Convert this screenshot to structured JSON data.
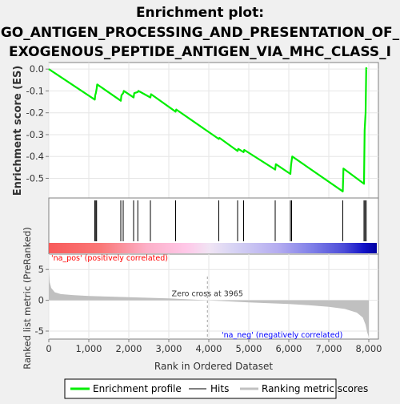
{
  "title_lines": [
    "Enrichment plot:",
    "GO_ANTIGEN_PROCESSING_AND_PRESENTATION_OF_",
    "EXOGENOUS_PEPTIDE_ANTIGEN_VIA_MHC_CLASS_I"
  ],
  "colors": {
    "enrichment_line": "#00ee00",
    "hits": "#000000",
    "metric_fill": "#c0c0c0",
    "pos_label": "#ff0000",
    "neg_label": "#0000ff",
    "zero_cross_line": "#a0a0a0"
  },
  "chart_data": {
    "type": "line",
    "xlabel": "Rank in Ordered Dataset",
    "xlim": [
      0,
      8200
    ],
    "x_ticks": [
      "0",
      "1,000",
      "2,000",
      "3,000",
      "4,000",
      "5,000",
      "6,000",
      "7,000",
      "8,000"
    ],
    "x_tick_values": [
      0,
      1000,
      2000,
      3000,
      4000,
      5000,
      6000,
      7000,
      8000
    ],
    "es_panel": {
      "ylabel": "Enrichment score (ES)",
      "ylim": [
        -0.59,
        0.03
      ],
      "y_ticks": [
        "0.0",
        "-0.1",
        "-0.2",
        "-0.3",
        "-0.4",
        "-0.5"
      ],
      "y_tick_values": [
        0.0,
        -0.1,
        -0.2,
        -0.3,
        -0.4,
        -0.5
      ],
      "series": [
        {
          "name": "Enrichment profile",
          "x": [
            0,
            1150,
            1160,
            1175,
            1195,
            1210,
            1800,
            1815,
            1860,
            1875,
            2120,
            2135,
            2225,
            2240,
            2540,
            2555,
            3170,
            3185,
            4250,
            4265,
            4720,
            4735,
            4870,
            4885,
            5660,
            5675,
            6040,
            6055,
            6070,
            6085,
            7350,
            7365,
            7880,
            7895,
            7920,
            7935,
            7945
          ],
          "y": [
            0.0,
            -0.14,
            -0.12,
            -0.11,
            -0.09,
            -0.07,
            -0.145,
            -0.12,
            -0.11,
            -0.1,
            -0.13,
            -0.11,
            -0.105,
            -0.1,
            -0.13,
            -0.115,
            -0.195,
            -0.185,
            -0.32,
            -0.315,
            -0.375,
            -0.365,
            -0.38,
            -0.37,
            -0.46,
            -0.435,
            -0.48,
            -0.44,
            -0.42,
            -0.4,
            -0.56,
            -0.455,
            -0.525,
            -0.28,
            -0.2,
            0.005,
            0.0
          ]
        }
      ]
    },
    "hits_panel": {
      "name": "Hits",
      "x": [
        1150,
        1175,
        1195,
        1800,
        1860,
        2120,
        2225,
        2540,
        3170,
        4250,
        4720,
        4870,
        5660,
        6040,
        6070,
        7350,
        7880,
        7905,
        7935
      ]
    },
    "metric_panel": {
      "name": "Ranking metric scores",
      "ylabel": "Ranked list metric (PreRanked)",
      "ylim": [
        -6.3,
        7.5
      ],
      "y_ticks": [
        "5",
        "0",
        "-5"
      ],
      "y_tick_values": [
        5,
        0,
        -5
      ],
      "zero_cross": 3965,
      "zero_cross_label": "Zero cross at 3965",
      "pos_label": "'na_pos' (positively correlated)",
      "neg_label": "'na_neg' (negatively correlated)",
      "series": [
        {
          "name": "Ranking metric scores",
          "x": [
            0,
            20,
            60,
            150,
            300,
            600,
            1000,
            1500,
            2000,
            3000,
            3965,
            5000,
            6000,
            6500,
            7000,
            7400,
            7700,
            7850,
            7920,
            7960,
            8000
          ],
          "y": [
            5.3,
            3.0,
            2.0,
            1.3,
            1.0,
            0.85,
            0.7,
            0.6,
            0.5,
            0.3,
            0.0,
            -0.35,
            -0.6,
            -0.8,
            -1.05,
            -1.4,
            -2.0,
            -2.8,
            -4.0,
            -5.2,
            -6.0
          ]
        }
      ]
    },
    "legend": {
      "placement": "bottom",
      "entries": [
        "Enrichment profile",
        "Hits",
        "Ranking metric scores"
      ]
    }
  }
}
